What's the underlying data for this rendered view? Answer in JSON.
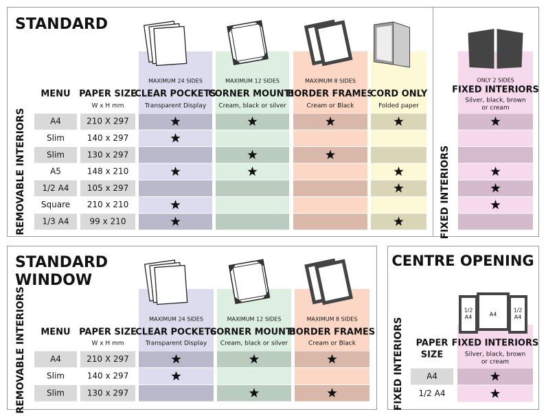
{
  "standard": {
    "title": "STANDARD",
    "side_label": "REMOVABLE INTERIORS",
    "menu_header": "MENU",
    "paper_header": "PAPER SIZE",
    "paper_sub": "W x H mm",
    "columns": [
      {
        "limit": "MAXIMUM 24 SIDES",
        "name": "CLEAR POCKETS",
        "sub": "Transparent Display",
        "light": "#dddcee",
        "dark": "#bab9cb"
      },
      {
        "limit": "MAXIMUM 12 SIDES",
        "name": "CORNER MOUNTS",
        "sub": "Cream, black or silver",
        "light": "#dcefe1",
        "dark": "#b9ccbd"
      },
      {
        "limit": "MAXIMUM 8 SIDES",
        "name": "BORDER FRAMES",
        "sub": "Cream or Black",
        "light": "#fcd7c6",
        "dark": "#dab8a9"
      },
      {
        "limit": "",
        "name": "CORD ONLY",
        "sub": "Folded paper",
        "light": "#fdf8d6",
        "dark": "#d9d5b6"
      }
    ],
    "fixed": {
      "side_label": "FIXED INTERIORS",
      "limit": "ONLY 2 SIDES",
      "name": "FIXED INTERIORS",
      "sub": [
        "Silver, black, brown",
        "or cream"
      ],
      "light": "#f6d9ec",
      "dark": "#d5b9cc"
    },
    "rows": [
      {
        "menu": "A4",
        "size": "210 X 297",
        "stars": [
          true,
          true,
          true,
          true
        ],
        "fixed": true
      },
      {
        "menu": "Slim",
        "size": "140 x 297",
        "stars": [
          true,
          false,
          false,
          false
        ],
        "fixed": false
      },
      {
        "menu": "Slim",
        "size": "130 x 297",
        "stars": [
          false,
          true,
          true,
          false
        ],
        "fixed": false
      },
      {
        "menu": "A5",
        "size": "148 x 210",
        "stars": [
          true,
          true,
          false,
          true
        ],
        "fixed": true
      },
      {
        "menu": "1/2 A4",
        "size": "105 x 297",
        "stars": [
          false,
          false,
          false,
          true
        ],
        "fixed": true
      },
      {
        "menu": "Square",
        "size": "210 x 210",
        "stars": [
          true,
          false,
          false,
          false
        ],
        "fixed": true
      },
      {
        "menu": "1/3 A4",
        "size": "99 x 210",
        "stars": [
          true,
          false,
          false,
          true
        ],
        "fixed": false
      }
    ]
  },
  "window": {
    "title": [
      "STANDARD",
      "WINDOW"
    ],
    "side_label": "REMOVABLE INTERIORS",
    "menu_header": "MENU",
    "paper_header": "PAPER SIZE",
    "paper_sub": "W x H mm",
    "columns": [
      {
        "limit": "MAXIMUM 24 SIDES",
        "name": "CLEAR POCKETS",
        "sub": "Transparent Display",
        "light": "#dddcee",
        "dark": "#bab9cb"
      },
      {
        "limit": "MAXIMUM 12 SIDES",
        "name": "CORNER MOUNTS",
        "sub": "Cream, black or silver",
        "light": "#dcefe1",
        "dark": "#b9ccbd"
      },
      {
        "limit": "MAXIMUM 8 SIDES",
        "name": "BORDER FRAMES",
        "sub": "Cream or Black",
        "light": "#fcd7c6",
        "dark": "#dab8a9"
      }
    ],
    "rows": [
      {
        "menu": "A4",
        "size": "210 X 297",
        "stars": [
          true,
          true,
          true
        ]
      },
      {
        "menu": "Slim",
        "size": "140 x 297",
        "stars": [
          true,
          false,
          false
        ]
      },
      {
        "menu": "Slim",
        "size": "130 x 297",
        "stars": [
          false,
          true,
          true
        ]
      }
    ]
  },
  "centre": {
    "title": "CENTRE OPENING",
    "side_label": "FIXED INTERIORS",
    "paper_header": [
      "PAPER",
      "SIZE"
    ],
    "icon_labels": [
      [
        "1/2",
        "A4"
      ],
      [
        "A4"
      ],
      [
        "1/2",
        "A4"
      ]
    ],
    "column": {
      "name": "FIXED INTERIORS",
      "sub": [
        "Silver, black, brown",
        "or cream"
      ],
      "light": "#f6d9ec",
      "dark": "#d5b9cc"
    },
    "rows": [
      {
        "size": "A4",
        "star": true
      },
      {
        "size": "1/2 A4",
        "star": true
      }
    ]
  }
}
